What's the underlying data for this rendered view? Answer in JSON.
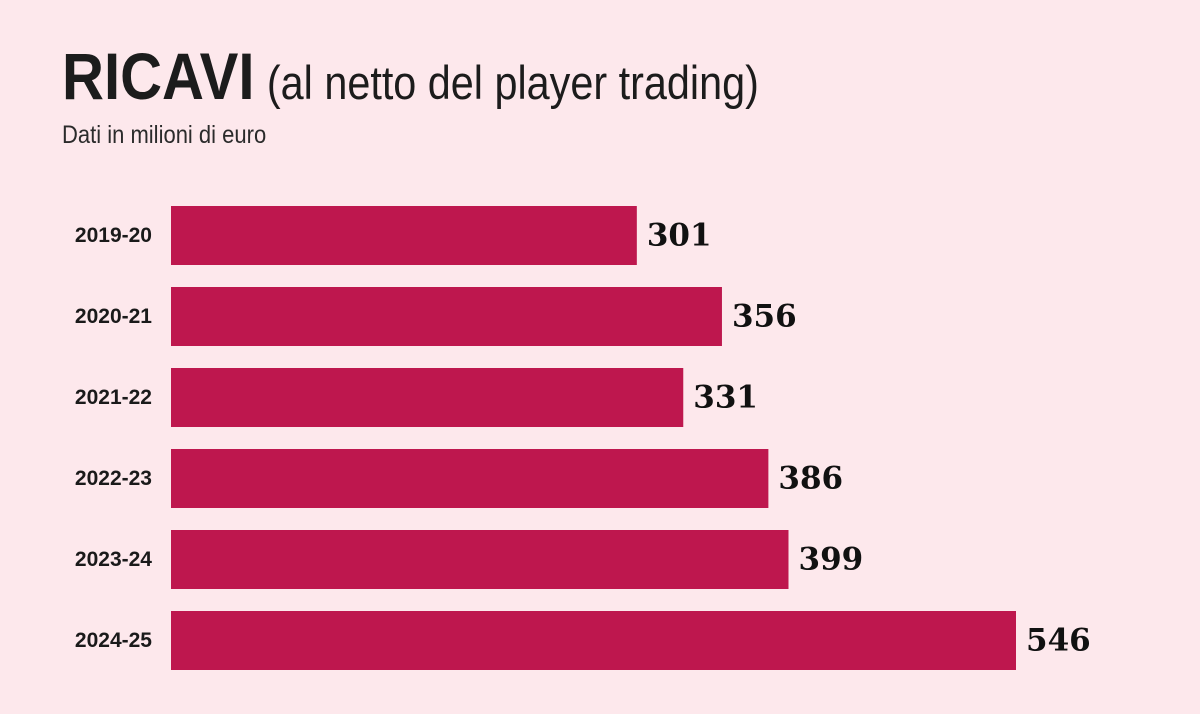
{
  "header": {
    "title": "RICAVI",
    "title_note": "(al netto del player trading)",
    "subtitle": "Dati in milioni di euro"
  },
  "colors": {
    "background": "#fde8ec",
    "bar": "#be174e"
  },
  "chart_data": {
    "type": "bar",
    "orientation": "horizontal",
    "title": "RICAVI (al netto del player trading)",
    "subtitle": "Dati in milioni di euro",
    "xlabel": "",
    "ylabel": "",
    "categories": [
      "2019-20",
      "2020-21",
      "2021-22",
      "2022-23",
      "2023-24",
      "2024-25"
    ],
    "values": [
      301,
      356,
      331,
      386,
      399,
      546
    ],
    "xlim": [
      0,
      546
    ],
    "grid": false,
    "legend": "none"
  }
}
